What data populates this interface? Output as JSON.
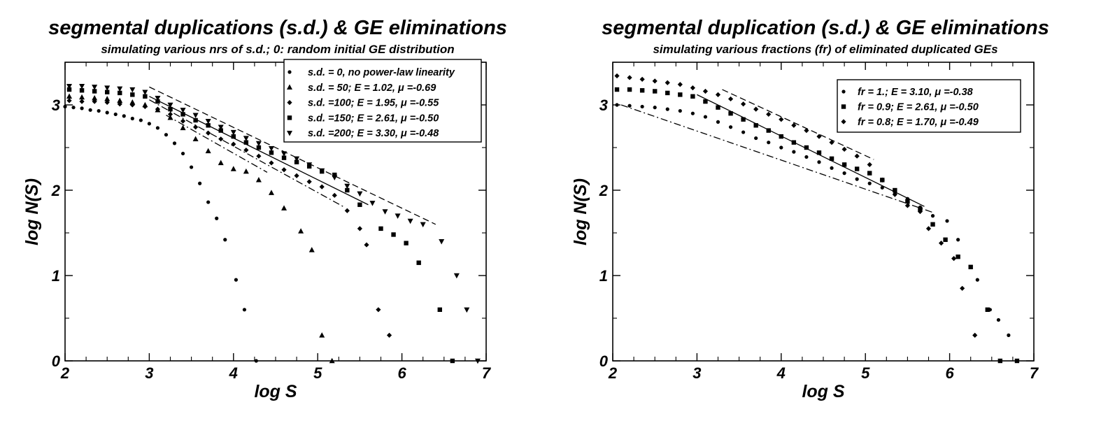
{
  "chart_data": [
    {
      "type": "scatter",
      "title": "segmental duplications (s.d.) & GE eliminations",
      "subtitle": "simulating various nrs of s.d.; 0: random initial GE distribution",
      "xlabel": "log S",
      "ylabel": "log N(S)",
      "xlim": [
        2,
        7
      ],
      "ylim": [
        0,
        3.5
      ],
      "xticks": [
        "2",
        "3",
        "4",
        "5",
        "6",
        "7"
      ],
      "yticks": [
        "0",
        "1",
        "2",
        "3"
      ],
      "legend_position": "top-right",
      "series": [
        {
          "name": "s.d. = 0, no power-law linearity",
          "marker": "circle",
          "x": [
            2.0,
            2.1,
            2.2,
            2.3,
            2.4,
            2.5,
            2.6,
            2.7,
            2.8,
            2.9,
            3.0,
            3.1,
            3.2,
            3.3,
            3.4,
            3.5,
            3.6,
            3.7,
            3.8,
            3.9,
            4.03,
            4.13,
            4.27
          ],
          "y": [
            2.98,
            2.97,
            2.96,
            2.94,
            2.93,
            2.91,
            2.89,
            2.87,
            2.84,
            2.82,
            2.78,
            2.73,
            2.65,
            2.55,
            2.43,
            2.27,
            2.08,
            1.86,
            1.67,
            1.42,
            0.95,
            0.6,
            0.0
          ]
        },
        {
          "name": "s.d. =  50; E = 1.02, μ =-0.69",
          "marker": "triangle-up",
          "x": [
            2.05,
            2.2,
            2.35,
            2.5,
            2.65,
            2.8,
            2.95,
            3.1,
            3.25,
            3.4,
            3.55,
            3.7,
            3.85,
            4.0,
            4.15,
            4.3,
            4.45,
            4.6,
            4.8,
            4.93,
            5.05,
            5.17
          ],
          "y": [
            3.1,
            3.09,
            3.08,
            3.07,
            3.05,
            3.03,
            3.0,
            2.94,
            2.85,
            2.73,
            2.6,
            2.46,
            2.32,
            2.25,
            2.22,
            2.12,
            1.97,
            1.79,
            1.52,
            1.3,
            0.3,
            0.0
          ]
        },
        {
          "name": "s.d. =100; E = 1.95, μ =-0.55",
          "marker": "diamond",
          "x": [
            2.05,
            2.2,
            2.35,
            2.5,
            2.65,
            2.8,
            2.95,
            3.1,
            3.25,
            3.4,
            3.55,
            3.7,
            3.85,
            4.0,
            4.15,
            4.3,
            4.45,
            4.6,
            4.75,
            4.9,
            5.05,
            5.2,
            5.35,
            5.5,
            5.58,
            5.72,
            5.85
          ],
          "y": [
            3.05,
            3.04,
            3.04,
            3.03,
            3.01,
            3.0,
            2.98,
            2.95,
            2.89,
            2.81,
            2.74,
            2.67,
            2.6,
            2.54,
            2.47,
            2.4,
            2.32,
            2.24,
            2.17,
            2.1,
            2.04,
            1.94,
            1.76,
            1.55,
            1.36,
            0.6,
            0.3
          ]
        },
        {
          "name": "s.d. =150; E = 2.61, μ =-0.50",
          "marker": "square",
          "x": [
            2.05,
            2.2,
            2.35,
            2.5,
            2.65,
            2.8,
            2.95,
            3.1,
            3.25,
            3.4,
            3.55,
            3.7,
            3.85,
            4.0,
            4.15,
            4.3,
            4.45,
            4.6,
            4.75,
            4.9,
            5.05,
            5.2,
            5.35,
            5.5,
            5.75,
            5.9,
            6.05,
            6.2,
            6.45,
            6.6
          ],
          "y": [
            3.18,
            3.17,
            3.16,
            3.15,
            3.14,
            3.12,
            3.1,
            3.04,
            2.95,
            2.89,
            2.82,
            2.76,
            2.7,
            2.63,
            2.56,
            2.5,
            2.44,
            2.38,
            2.33,
            2.28,
            2.22,
            2.18,
            2.0,
            1.83,
            1.55,
            1.48,
            1.38,
            1.15,
            0.6,
            0.0
          ]
        },
        {
          "name": "s.d. =200; E = 3.30, μ =-0.48",
          "marker": "triangle-down",
          "x": [
            2.05,
            2.2,
            2.35,
            2.5,
            2.65,
            2.8,
            2.95,
            3.1,
            3.25,
            3.4,
            3.55,
            3.7,
            3.85,
            4.0,
            4.15,
            4.3,
            4.45,
            4.6,
            4.75,
            4.9,
            5.05,
            5.2,
            5.35,
            5.5,
            5.65,
            5.8,
            5.95,
            6.1,
            6.25,
            6.47,
            6.65,
            6.77,
            6.9
          ],
          "y": [
            3.22,
            3.22,
            3.21,
            3.2,
            3.19,
            3.18,
            3.15,
            3.08,
            3.0,
            2.94,
            2.88,
            2.81,
            2.74,
            2.68,
            2.61,
            2.55,
            2.49,
            2.43,
            2.37,
            2.3,
            2.23,
            2.15,
            2.05,
            1.96,
            1.85,
            1.75,
            1.7,
            1.64,
            1.6,
            1.4,
            1.0,
            0.6,
            0.0
          ]
        }
      ],
      "fit_lines": [
        {
          "series": "s.d. =  50; E = 1.02, μ =-0.69",
          "style": "dash-dot",
          "x": [
            3.2,
            4.4
          ],
          "y": [
            2.88,
            2.21
          ]
        },
        {
          "series": "s.d. =100; E = 1.95, μ =-0.55",
          "style": "dash-dot",
          "x": [
            3.0,
            5.3
          ],
          "y": [
            3.06,
            1.81
          ]
        },
        {
          "series": "s.d. =150; E = 2.61, μ =-0.50",
          "style": "solid",
          "x": [
            3.0,
            5.6
          ],
          "y": [
            3.1,
            1.83
          ]
        },
        {
          "series": "s.d. =200; E = 3.30, μ =-0.48",
          "style": "dash",
          "x": [
            3.0,
            6.4
          ],
          "y": [
            3.21,
            1.6
          ]
        }
      ]
    },
    {
      "type": "scatter",
      "title": "segmental duplication (s.d.) & GE eliminations",
      "subtitle": "simulating various fractions (fr) of eliminated duplicated GEs",
      "xlabel": "log S",
      "ylabel": "log N(S)",
      "xlim": [
        2,
        7
      ],
      "ylim": [
        0,
        3.5
      ],
      "xticks": [
        "2",
        "3",
        "4",
        "5",
        "6",
        "7"
      ],
      "yticks": [
        "0",
        "1",
        "2",
        "3"
      ],
      "legend_position": "top-right",
      "series": [
        {
          "name": "fr =    1.; E = 3.10, μ =-0.38",
          "marker": "circle",
          "x": [
            2.05,
            2.2,
            2.35,
            2.5,
            2.65,
            2.8,
            2.95,
            3.1,
            3.25,
            3.4,
            3.55,
            3.7,
            3.85,
            4.0,
            4.15,
            4.3,
            4.45,
            4.6,
            4.75,
            4.9,
            5.05,
            5.2,
            5.35,
            5.5,
            5.65,
            5.8,
            5.97,
            6.1,
            6.33,
            6.48,
            6.58,
            6.7
          ],
          "y": [
            3.0,
            2.99,
            2.98,
            2.97,
            2.95,
            2.93,
            2.9,
            2.86,
            2.8,
            2.74,
            2.68,
            2.61,
            2.56,
            2.5,
            2.45,
            2.39,
            2.33,
            2.26,
            2.2,
            2.13,
            2.08,
            2.03,
            1.96,
            1.9,
            1.8,
            1.7,
            1.64,
            1.42,
            0.95,
            0.6,
            0.48,
            0.3
          ]
        },
        {
          "name": "fr =  0.9; E = 2.61, μ =-0.50",
          "marker": "square",
          "x": [
            2.05,
            2.2,
            2.35,
            2.5,
            2.65,
            2.8,
            2.95,
            3.1,
            3.25,
            3.4,
            3.55,
            3.7,
            3.85,
            4.0,
            4.15,
            4.3,
            4.45,
            4.6,
            4.75,
            4.9,
            5.05,
            5.2,
            5.35,
            5.5,
            5.65,
            5.8,
            5.95,
            6.1,
            6.25,
            6.45,
            6.6,
            6.8
          ],
          "y": [
            3.18,
            3.18,
            3.17,
            3.16,
            3.14,
            3.12,
            3.1,
            3.04,
            2.97,
            2.9,
            2.83,
            2.76,
            2.7,
            2.63,
            2.56,
            2.5,
            2.44,
            2.37,
            2.3,
            2.25,
            2.2,
            2.12,
            2.0,
            1.87,
            1.78,
            1.6,
            1.42,
            1.22,
            1.1,
            0.6,
            0.0,
            0.0
          ]
        },
        {
          "name": "fr =  0.8; E = 1.70, μ =-0.49",
          "marker": "diamond",
          "x": [
            2.05,
            2.2,
            2.35,
            2.5,
            2.65,
            2.8,
            2.95,
            3.1,
            3.25,
            3.4,
            3.55,
            3.7,
            3.85,
            4.0,
            4.15,
            4.3,
            4.45,
            4.6,
            4.75,
            4.9,
            5.05,
            5.2,
            5.35,
            5.5,
            5.65,
            5.75,
            5.9,
            6.05,
            6.15,
            6.3
          ],
          "y": [
            3.34,
            3.32,
            3.3,
            3.28,
            3.26,
            3.24,
            3.2,
            3.16,
            3.12,
            3.07,
            3.01,
            2.95,
            2.89,
            2.83,
            2.76,
            2.7,
            2.63,
            2.56,
            2.48,
            2.4,
            2.3,
            2.12,
            1.95,
            1.82,
            1.75,
            1.55,
            1.38,
            1.2,
            0.85,
            0.3
          ]
        }
      ],
      "fit_lines": [
        {
          "series": "fr =    1.; E = 3.10, μ =-0.38",
          "style": "dash-dot",
          "x": [
            2.1,
            5.8
          ],
          "y": [
            3.0,
            1.74
          ]
        },
        {
          "series": "fr =  0.9; E = 2.61, μ =-0.50",
          "style": "solid",
          "x": [
            3.0,
            5.7
          ],
          "y": [
            3.12,
            1.81
          ]
        },
        {
          "series": "fr =  0.8; E = 1.70, μ =-0.49",
          "style": "dash",
          "x": [
            3.3,
            5.1
          ],
          "y": [
            3.18,
            2.36
          ]
        }
      ]
    }
  ]
}
